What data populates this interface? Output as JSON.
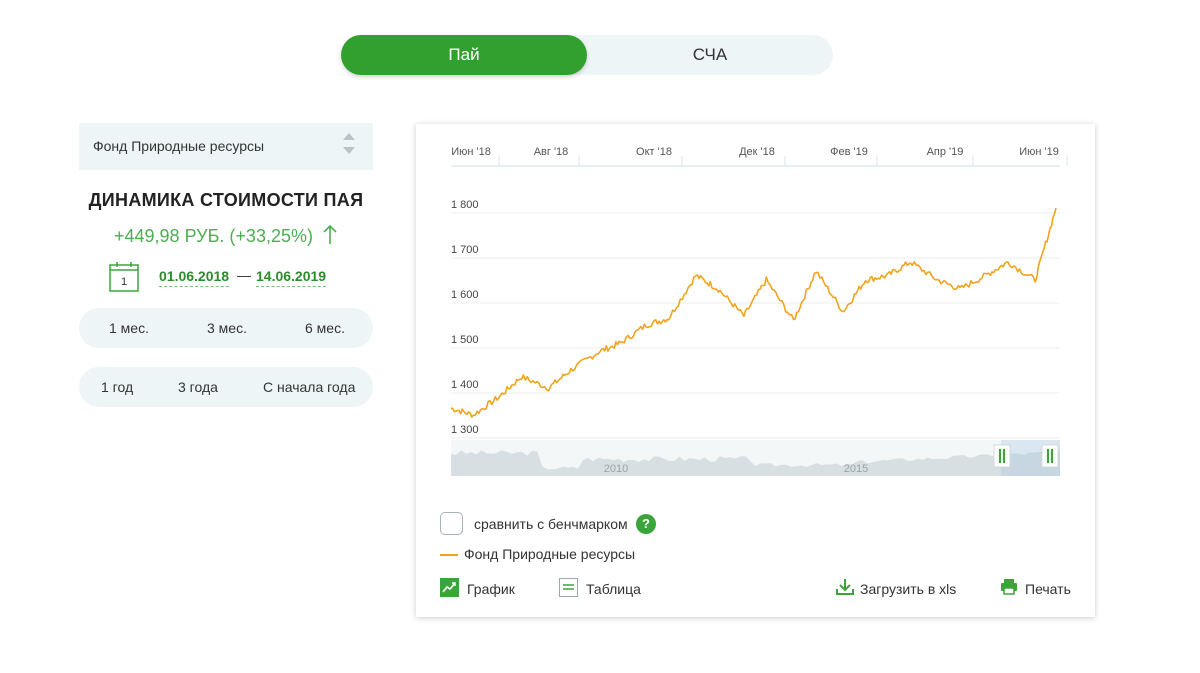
{
  "toggle": {
    "pai": "Пай",
    "scha": "СЧА"
  },
  "fund_select": {
    "value": "Фонд Природные ресурсы"
  },
  "dynamics": {
    "title": "ДИНАМИКА СТОИМОСТИ ПАЯ",
    "change": "+449,98 РУБ. (+33,25%)",
    "date_from": "01.06.2018",
    "date_sep": "—",
    "date_to": "14.06.2019",
    "calendar_day": "1"
  },
  "periods": {
    "row1": [
      "1 мес.",
      "3 мес.",
      "6 мес."
    ],
    "row2": [
      "1 год",
      "3 года",
      "С начала года"
    ]
  },
  "chart_data": {
    "type": "line",
    "x_ticks": [
      "Июн '18",
      "Авг '18",
      "Окт '18",
      "Дек '18",
      "Фев '19",
      "Апр '19",
      "Июн '19"
    ],
    "y_ticks": [
      "1 800",
      "1 700",
      "1 600",
      "1 500",
      "1 400",
      "1 300"
    ],
    "ylim": [
      1300,
      1800
    ],
    "series": [
      {
        "name": "Фонд Природные ресурсы",
        "color": "#f0a41e",
        "x": [
          "2018-06-01",
          "2018-06-15",
          "2018-07-01",
          "2018-07-15",
          "2018-08-01",
          "2018-08-15",
          "2018-09-01",
          "2018-09-15",
          "2018-10-01",
          "2018-10-15",
          "2018-11-01",
          "2018-11-15",
          "2018-12-01",
          "2018-12-15",
          "2019-01-01",
          "2019-01-15",
          "2019-02-01",
          "2019-02-15",
          "2019-03-01",
          "2019-03-15",
          "2019-04-01",
          "2019-04-15",
          "2019-05-01",
          "2019-05-15",
          "2019-06-01",
          "2019-06-14"
        ],
        "y": [
          1355,
          1340,
          1380,
          1425,
          1400,
          1440,
          1480,
          1500,
          1540,
          1555,
          1650,
          1620,
          1560,
          1640,
          1550,
          1660,
          1570,
          1640,
          1650,
          1680,
          1640,
          1620,
          1650,
          1680,
          1640,
          1800
        ]
      }
    ],
    "navigator": {
      "labels": [
        "2010",
        "2015"
      ]
    },
    "grid": true
  },
  "benchmark": {
    "label": "сравнить с бенчмарком",
    "help": "?"
  },
  "legend": {
    "label": "Фонд Природные ресурсы"
  },
  "actions": {
    "chart": "График",
    "table": "Таблица",
    "download": "Загрузить в xls",
    "print": "Печать"
  },
  "colors": {
    "accent": "#32a02e",
    "line": "#f0a41e",
    "panel_bg": "#eef5f6"
  }
}
